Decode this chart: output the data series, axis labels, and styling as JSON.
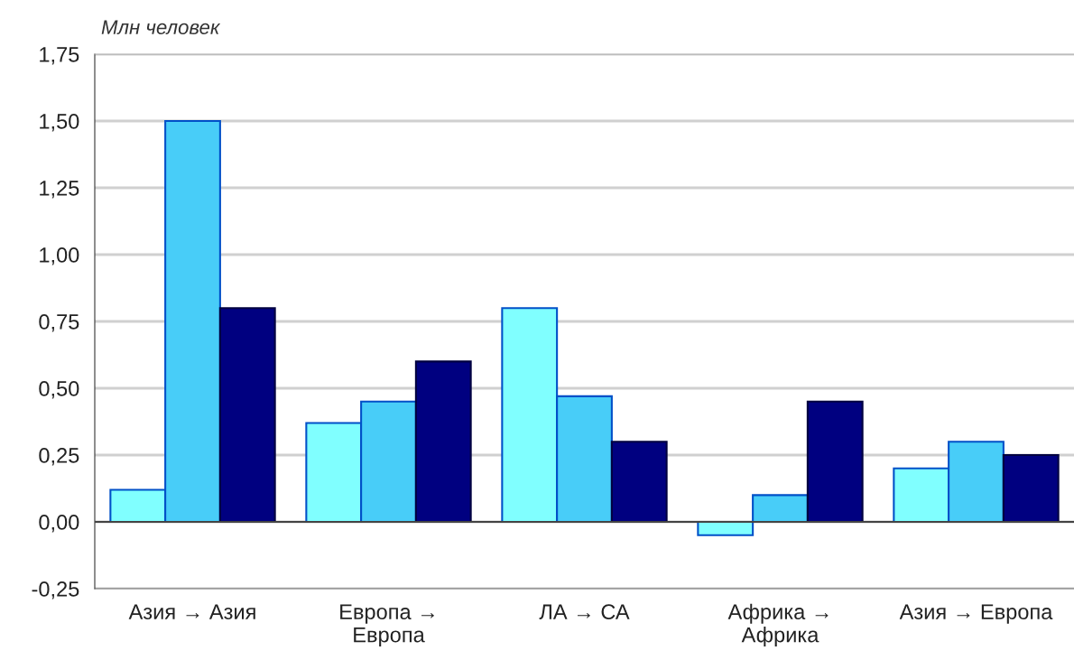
{
  "chart_data": {
    "type": "bar",
    "ylabel": "Млн человек",
    "categories": [
      "Азия → Азия",
      "Европа →\nЕвропа",
      "ЛА → СА",
      "Африка →\nАфрика",
      "Азия → Европа"
    ],
    "series": [
      {
        "color": "#80ffff",
        "values": [
          0.12,
          0.37,
          0.8,
          -0.05,
          0.2
        ]
      },
      {
        "color": "#48cdf8",
        "values": [
          1.5,
          0.45,
          0.47,
          0.1,
          0.3
        ]
      },
      {
        "color": "#000080",
        "values": [
          0.8,
          0.6,
          0.3,
          0.45,
          0.25
        ]
      }
    ],
    "ylim": [
      -0.25,
      1.75
    ],
    "yticks": [
      {
        "value": -0.25,
        "label": "-0,25"
      },
      {
        "value": 0,
        "label": "0,00"
      },
      {
        "value": 0.25,
        "label": "0,25"
      },
      {
        "value": 0.5,
        "label": "0,50"
      },
      {
        "value": 0.75,
        "label": "0,75"
      },
      {
        "value": 1.0,
        "label": "1,00"
      },
      {
        "value": 1.25,
        "label": "1,25"
      },
      {
        "value": 1.5,
        "label": "1,50"
      },
      {
        "value": 1.75,
        "label": "1,75"
      }
    ],
    "grid": "y",
    "legend": false
  }
}
